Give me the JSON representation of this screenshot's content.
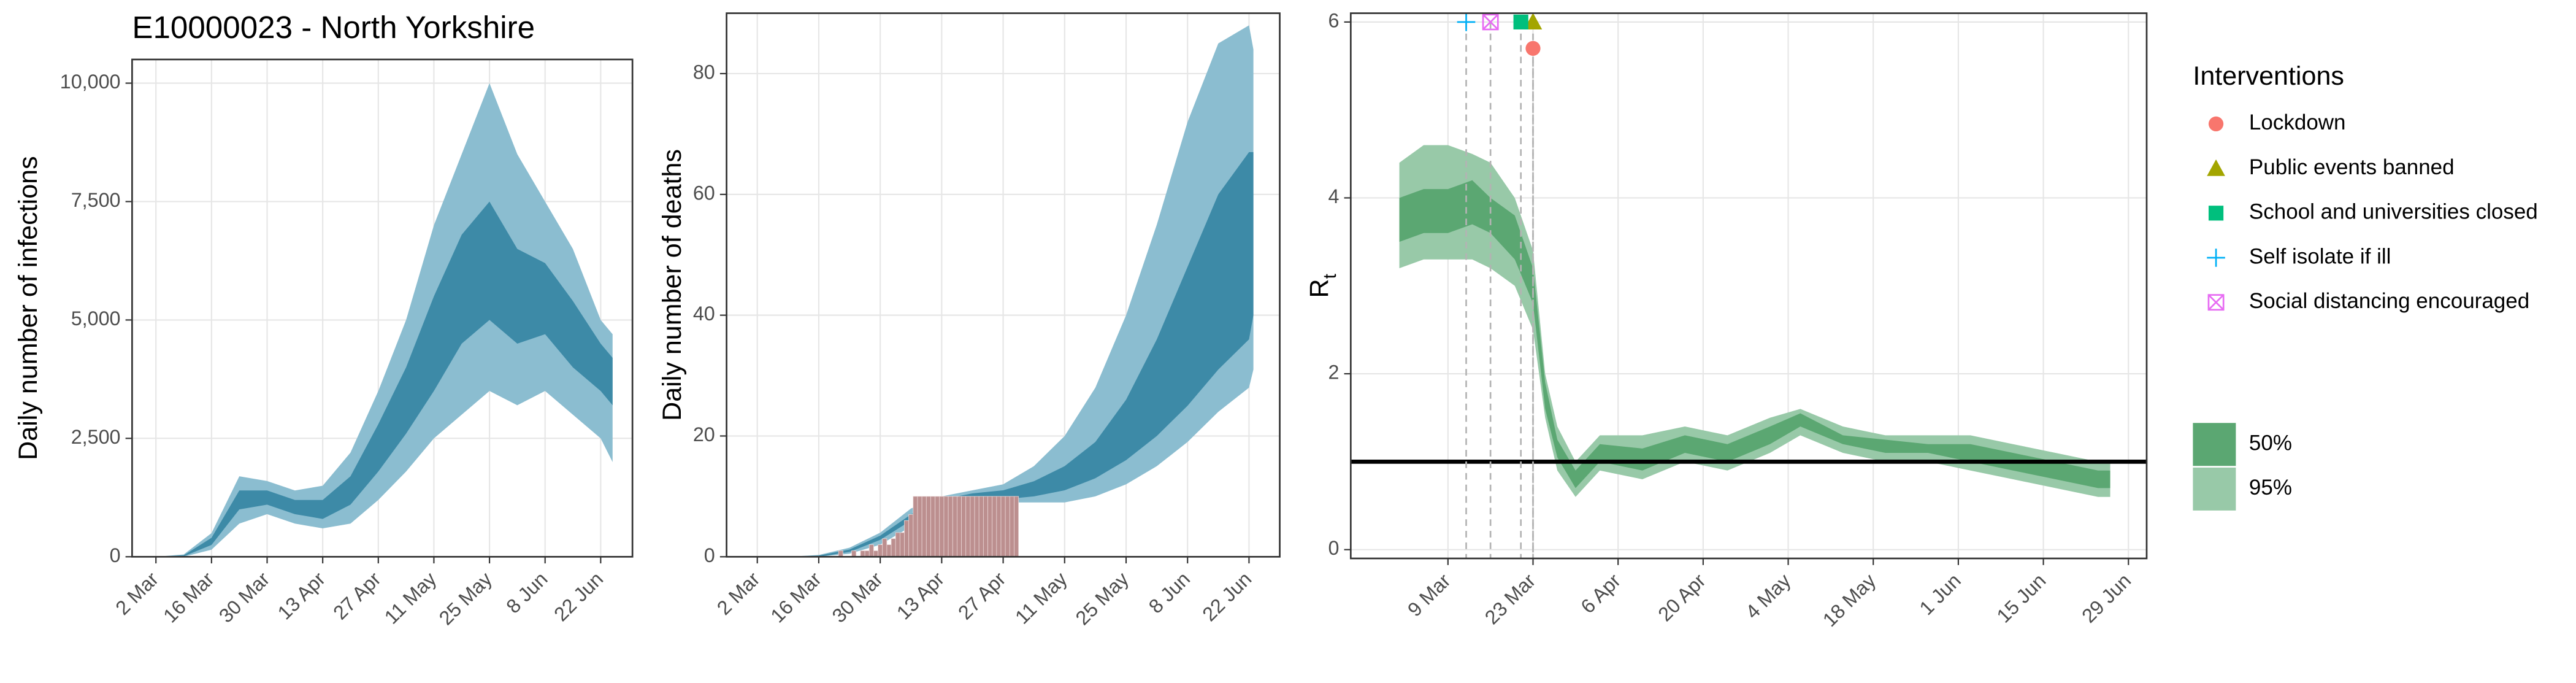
{
  "chart_data": [
    {
      "type": "band",
      "title": "E10000023 - North Yorkshire",
      "y_label": "Daily number of infections",
      "xlim": [
        "24 Feb",
        "30 Jun"
      ],
      "xticks": [
        "2 Mar",
        "16 Mar",
        "30 Mar",
        "13 Apr",
        "27 Apr",
        "11 May",
        "25 May",
        "8 Jun",
        "22 Jun"
      ],
      "ylim": [
        0,
        10500
      ],
      "yticks": [
        0,
        {
          "value": 2500,
          "label": "2,500"
        },
        {
          "value": 5000,
          "label": "5,000"
        },
        {
          "value": 7500,
          "label": "7,500"
        },
        {
          "value": 10000,
          "label": "10,000"
        }
      ],
      "grid": true,
      "x": [
        "2 Mar",
        "9 Mar",
        "16 Mar",
        "23 Mar",
        "30 Mar",
        "6 Apr",
        "13 Apr",
        "20 Apr",
        "27 Apr",
        "4 May",
        "11 May",
        "18 May",
        "25 May",
        "1 Jun",
        "8 Jun",
        "15 Jun",
        "22 Jun",
        "25 Jun"
      ],
      "bands": [
        {
          "color": "#8bbdd0",
          "lower": [
            0,
            0,
            150,
            700,
            900,
            700,
            600,
            700,
            1200,
            1800,
            2500,
            3000,
            3500,
            3200,
            3500,
            3000,
            2500,
            2000
          ],
          "upper": [
            0,
            50,
            500,
            1700,
            1600,
            1400,
            1500,
            2200,
            3500,
            5000,
            7000,
            8500,
            10000,
            8500,
            7500,
            6500,
            5000,
            4700
          ]
        },
        {
          "color": "#3d8aa7",
          "lower": [
            0,
            10,
            250,
            1000,
            1100,
            900,
            800,
            1100,
            1800,
            2600,
            3500,
            4500,
            5000,
            4500,
            4700,
            4000,
            3500,
            3200
          ],
          "upper": [
            0,
            30,
            400,
            1400,
            1400,
            1200,
            1200,
            1700,
            2800,
            4000,
            5500,
            6800,
            7500,
            6500,
            6200,
            5400,
            4500,
            4200
          ]
        }
      ]
    },
    {
      "type": "band",
      "y_label": "Daily number of deaths",
      "xlim": [
        "23 Feb",
        "29 Jun"
      ],
      "xticks": [
        "2 Mar",
        "16 Mar",
        "30 Mar",
        "13 Apr",
        "27 Apr",
        "11 May",
        "25 May",
        "8 Jun",
        "22 Jun"
      ],
      "ylim": [
        0,
        90
      ],
      "yticks": [
        0,
        20,
        40,
        60,
        80
      ],
      "grid": true,
      "x": [
        "2 Mar",
        "9 Mar",
        "16 Mar",
        "23 Mar",
        "30 Mar",
        "6 Apr",
        "13 Apr",
        "20 Apr",
        "27 Apr",
        "4 May",
        "11 May",
        "18 May",
        "25 May",
        "1 Jun",
        "8 Jun",
        "15 Jun",
        "22 Jun",
        "23 Jun"
      ],
      "bands": [
        {
          "color": "#8bbdd0",
          "lower": [
            0,
            0,
            0,
            0.5,
            2,
            5,
            8,
            9,
            9,
            9,
            9,
            10,
            12,
            15,
            19,
            24,
            28,
            31
          ],
          "upper": [
            0,
            0,
            0.3,
            1.5,
            4,
            8,
            10,
            11,
            12,
            15,
            20,
            28,
            40,
            55,
            72,
            85,
            88,
            84
          ]
        },
        {
          "color": "#3d8aa7",
          "lower": [
            0,
            0,
            0,
            0.8,
            2.8,
            6,
            8.5,
            9.5,
            9.5,
            10,
            11,
            13,
            16,
            20,
            25,
            31,
            36,
            40
          ],
          "upper": [
            0,
            0,
            0.2,
            1.2,
            3.5,
            7,
            9.5,
            10.5,
            11,
            12.5,
            15,
            19,
            26,
            36,
            48,
            60,
            67,
            67
          ]
        }
      ],
      "bars": {
        "color": "#bc8f8f",
        "x": [
          "21 Mar",
          "22 Mar",
          "23 Mar",
          "24 Mar",
          "25 Mar",
          "26 Mar",
          "27 Mar",
          "28 Mar",
          "29 Mar",
          "30 Mar",
          "31 Mar",
          "1 Apr",
          "2 Apr",
          "3 Apr",
          "4 Apr",
          "5 Apr",
          "6 Apr",
          "7 Apr",
          "8 Apr",
          "9 Apr",
          "10 Apr",
          "11 Apr",
          "12 Apr",
          "13 Apr",
          "14 Apr",
          "15 Apr",
          "16 Apr",
          "17 Apr",
          "18 Apr",
          "19 Apr",
          "20 Apr",
          "21 Apr",
          "22 Apr",
          "23 Apr",
          "24 Apr",
          "25 Apr",
          "26 Apr",
          "27 Apr",
          "28 Apr",
          "29 Apr",
          "30 Apr"
        ],
        "values": [
          1,
          0,
          0,
          1,
          0,
          1,
          1,
          2,
          1,
          2,
          3,
          2,
          3,
          4,
          4,
          6,
          7,
          10,
          10,
          10,
          10,
          10,
          10,
          10,
          10,
          10,
          10,
          10,
          10,
          10,
          10,
          10,
          10,
          10,
          10,
          10,
          10,
          10,
          10,
          10,
          10
        ]
      }
    },
    {
      "type": "band",
      "y_label": "R",
      "y_label_sub": "t",
      "xlim": [
        "21 Feb",
        "2 Jul"
      ],
      "xticks": [
        "9 Mar",
        "23 Mar",
        "6 Apr",
        "20 Apr",
        "4 May",
        "18 May",
        "1 Jun",
        "15 Jun",
        "29 Jun"
      ],
      "ylim": [
        -0.1,
        6.1
      ],
      "yticks": [
        0,
        2,
        4,
        6
      ],
      "grid": true,
      "hline": 1,
      "x": [
        "1 Mar",
        "5 Mar",
        "9 Mar",
        "13 Mar",
        "16 Mar",
        "20 Mar",
        "23 Mar",
        "25 Mar",
        "27 Mar",
        "30 Mar",
        "3 Apr",
        "10 Apr",
        "17 Apr",
        "24 Apr",
        "1 May",
        "6 May",
        "13 May",
        "20 May",
        "27 May",
        "3 Jun",
        "10 Jun",
        "17 Jun",
        "24 Jun",
        "26 Jun"
      ],
      "bands": [
        {
          "name": "95%",
          "color": "#98c9a8",
          "lower": [
            3.2,
            3.3,
            3.3,
            3.3,
            3.2,
            3.0,
            2.5,
            1.5,
            0.9,
            0.6,
            0.9,
            0.8,
            1.0,
            0.9,
            1.1,
            1.3,
            1.1,
            1.0,
            1.0,
            0.9,
            0.8,
            0.7,
            0.6,
            0.6
          ],
          "upper": [
            4.4,
            4.6,
            4.6,
            4.5,
            4.4,
            4.0,
            3.4,
            2.0,
            1.4,
            1.0,
            1.3,
            1.3,
            1.4,
            1.3,
            1.5,
            1.6,
            1.4,
            1.3,
            1.3,
            1.3,
            1.2,
            1.1,
            1.0,
            1.0
          ]
        },
        {
          "name": "50%",
          "color": "#5ba772",
          "lower": [
            3.5,
            3.6,
            3.6,
            3.7,
            3.6,
            3.3,
            2.8,
            1.6,
            1.05,
            0.7,
            1.0,
            0.9,
            1.1,
            1.0,
            1.2,
            1.4,
            1.2,
            1.1,
            1.1,
            1.0,
            0.9,
            0.8,
            0.7,
            0.7
          ],
          "upper": [
            4.0,
            4.1,
            4.1,
            4.2,
            4.0,
            3.8,
            3.2,
            1.9,
            1.25,
            0.9,
            1.2,
            1.15,
            1.3,
            1.2,
            1.4,
            1.55,
            1.3,
            1.25,
            1.2,
            1.2,
            1.1,
            1.0,
            0.9,
            0.9
          ]
        }
      ],
      "legend_title": "Interventions",
      "interventions": [
        {
          "name": "Lockdown",
          "date": "23 Mar",
          "y": 5.7,
          "color": "#f8766d",
          "shape": "circle"
        },
        {
          "name": "Public events banned",
          "date": "23 Mar",
          "y": 6,
          "color": "#a3a500",
          "shape": "triangle"
        },
        {
          "name": "School and universities closed",
          "date": "21 Mar",
          "y": 6,
          "color": "#00bf7d",
          "shape": "square"
        },
        {
          "name": "Self isolate if ill",
          "date": "12 Mar",
          "y": 6,
          "color": "#00b0f6",
          "shape": "plus"
        },
        {
          "name": "Social distancing encouraged",
          "date": "16 Mar",
          "y": 6,
          "color": "#e76bf3",
          "shape": "boxx"
        }
      ]
    }
  ]
}
